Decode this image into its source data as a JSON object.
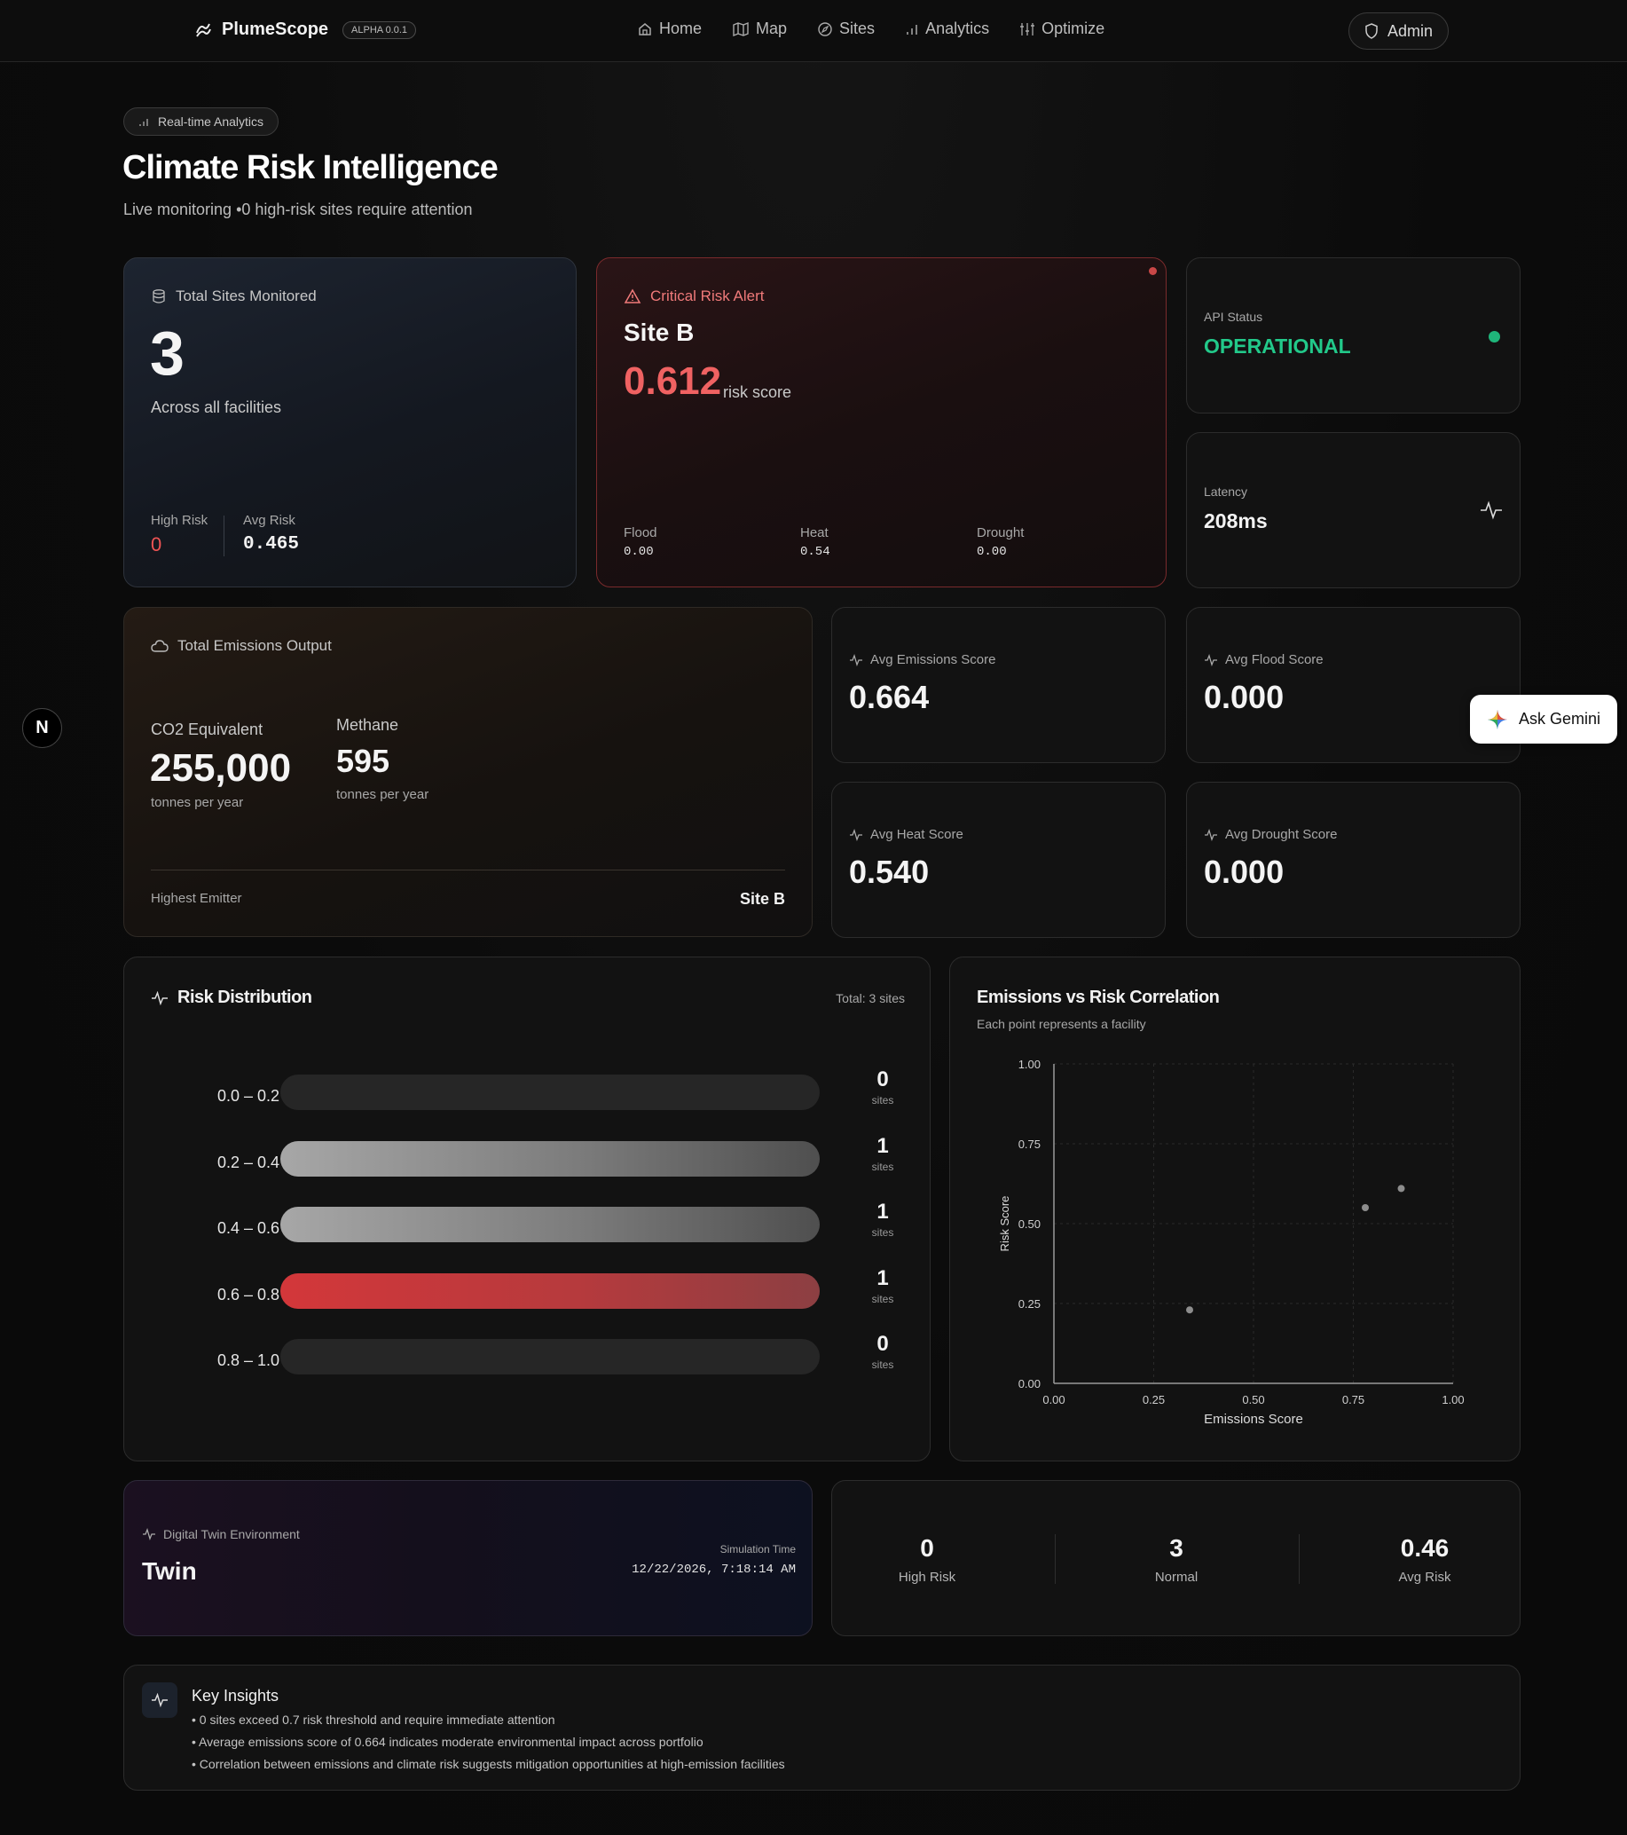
{
  "nav": {
    "brand": "PlumeScope",
    "version": "ALPHA 0.0.1",
    "links": [
      {
        "label": "Home",
        "icon": "home-icon"
      },
      {
        "label": "Map",
        "icon": "map-icon"
      },
      {
        "label": "Sites",
        "icon": "compass-icon"
      },
      {
        "label": "Analytics",
        "icon": "bar-chart-icon"
      },
      {
        "label": "Optimize",
        "icon": "sliders-icon"
      }
    ],
    "admin_label": "Admin"
  },
  "header": {
    "badge": "Real-time Analytics",
    "title": "Climate Risk Intelligence",
    "subtitle": "Live monitoring •0 high-risk sites require attention"
  },
  "sites_card": {
    "label": "Total Sites Monitored",
    "value": "3",
    "caption": "Across all facilities",
    "high_risk_label": "High Risk",
    "high_risk_value": "0",
    "avg_risk_label": "Avg Risk",
    "avg_risk_value": "0.465"
  },
  "alert_card": {
    "label": "Critical Risk Alert",
    "site": "Site B",
    "score": "0.612",
    "score_suffix": "risk score",
    "flood_label": "Flood",
    "flood_value": "0.00",
    "heat_label": "Heat",
    "heat_value": "0.54",
    "drought_label": "Drought",
    "drought_value": "0.00"
  },
  "api_card": {
    "label": "API Status",
    "value": "OPERATIONAL",
    "status_color": "#1fb57a"
  },
  "latency_card": {
    "label": "Latency",
    "value": "208ms"
  },
  "emissions_card": {
    "label": "Total Emissions Output",
    "co2_label": "CO2 Equivalent",
    "co2_value": "255,000",
    "co2_unit": "tonnes per year",
    "methane_label": "Methane",
    "methane_value": "595",
    "methane_unit": "tonnes per year",
    "highest_label": "Highest Emitter",
    "highest_value": "Site B"
  },
  "score_cards": [
    {
      "label": "Avg Emissions Score",
      "value": "0.664"
    },
    {
      "label": "Avg Flood Score",
      "value": "0.000"
    },
    {
      "label": "Avg Heat Score",
      "value": "0.540"
    },
    {
      "label": "Avg Drought Score",
      "value": "0.000"
    }
  ],
  "risk_distribution": {
    "title": "Risk Distribution",
    "total": "Total: 3 sites",
    "unit": "sites",
    "max": 1,
    "rows": [
      {
        "range": "0.0 – 0.2",
        "count": 0,
        "style": "none"
      },
      {
        "range": "0.2 – 0.4",
        "count": 1,
        "style": "gray"
      },
      {
        "range": "0.4 – 0.6",
        "count": 1,
        "style": "gray"
      },
      {
        "range": "0.6 – 0.8",
        "count": 1,
        "style": "red"
      },
      {
        "range": "0.8 – 1.0",
        "count": 0,
        "style": "none"
      }
    ]
  },
  "chart_data": {
    "type": "scatter",
    "title": "Emissions vs Risk Correlation",
    "subtitle": "Each point represents a facility",
    "xlabel": "Emissions Score",
    "ylabel": "Risk Score",
    "xlim": [
      0,
      1
    ],
    "ylim": [
      0,
      1
    ],
    "xticks": [
      "0.00",
      "0.25",
      "0.50",
      "0.75",
      "1.00"
    ],
    "yticks": [
      "0.00",
      "0.25",
      "0.50",
      "0.75",
      "1.00"
    ],
    "grid": true,
    "points": [
      {
        "x": 0.34,
        "y": 0.23
      },
      {
        "x": 0.78,
        "y": 0.55
      },
      {
        "x": 0.87,
        "y": 0.61
      }
    ]
  },
  "twin_card": {
    "label": "Digital Twin Environment",
    "title": "Twin",
    "sim_label": "Simulation Time",
    "sim_value": "12/22/2026, 7:18:14 AM"
  },
  "summary": [
    {
      "value": "0",
      "label": "High Risk"
    },
    {
      "value": "3",
      "label": "Normal"
    },
    {
      "value": "0.46",
      "label": "Avg Risk"
    }
  ],
  "insights": {
    "title": "Key Insights",
    "items": [
      "• 0 sites exceed 0.7 risk threshold and require immediate attention",
      "• Average emissions score of 0.664 indicates moderate environmental impact across portfolio",
      "• Correlation between emissions and climate risk suggests mitigation opportunities at high-emission facilities"
    ]
  },
  "assistant": {
    "label": "Ask Gemini"
  },
  "dev_badge": "N"
}
